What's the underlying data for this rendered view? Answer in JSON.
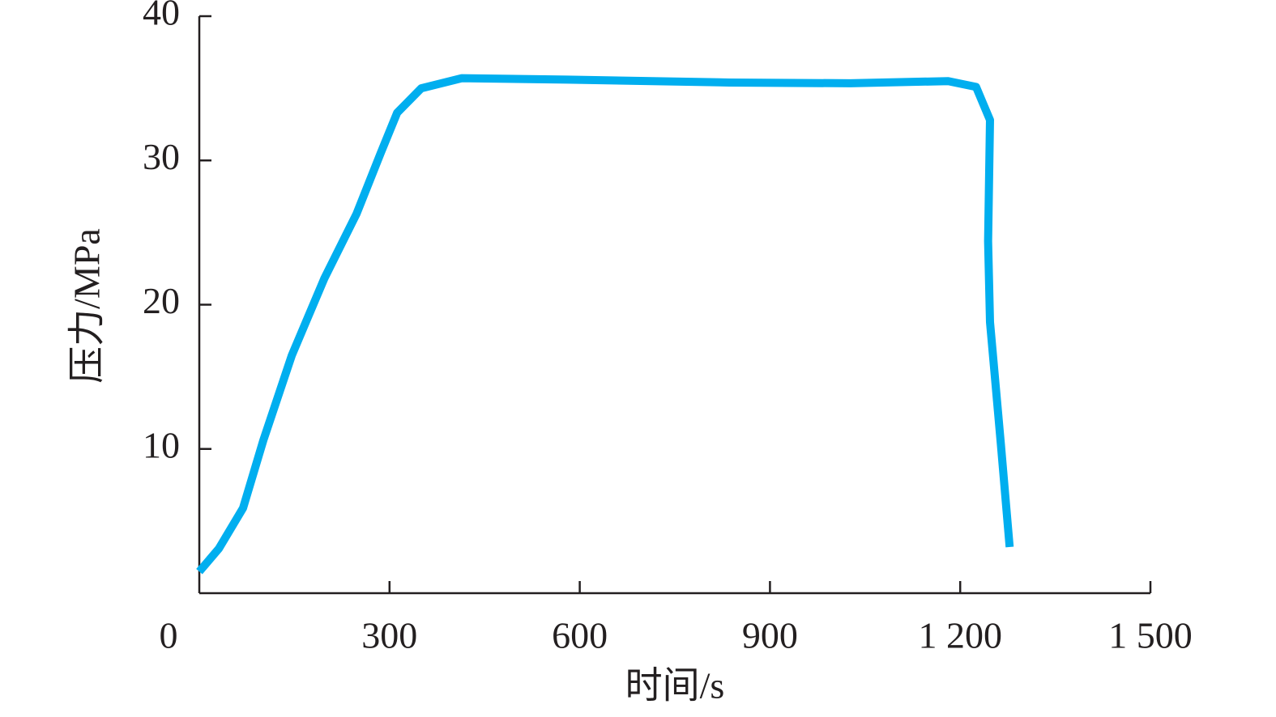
{
  "chart_data": {
    "type": "line",
    "x_label": "时间/s",
    "y_label": "压力/MPa",
    "x": [
      0,
      31,
      69,
      101,
      146,
      197,
      248,
      286,
      312,
      350,
      414,
      580,
      836,
      1027,
      1181,
      1225,
      1247,
      1244,
      1247,
      1264,
      1278
    ],
    "series": [
      {
        "color": "#00aeef",
        "values": [
          1.5,
          3.1,
          5.9,
          10.6,
          16.5,
          21.8,
          26.3,
          30.5,
          33.3,
          35.0,
          35.7,
          35.6,
          35.4,
          35.35,
          35.5,
          35.1,
          32.8,
          24.4,
          18.8,
          10.4,
          3.2
        ]
      }
    ],
    "xlim": [
      0,
      1500
    ],
    "xticks": [
      0,
      300,
      600,
      900,
      {
        "value": 1200,
        "label": "1 200"
      },
      {
        "value": 1500,
        "label": "1 500"
      }
    ],
    "ylim": [
      0,
      40
    ],
    "yticks": [
      10,
      20,
      30,
      40
    ],
    "grid": false
  }
}
